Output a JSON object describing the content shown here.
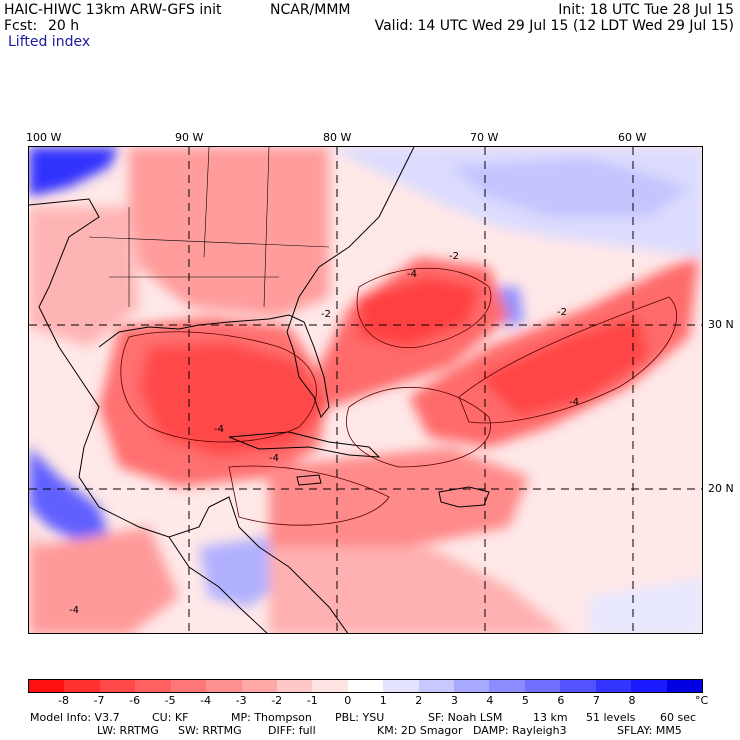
{
  "header": {
    "model": "HAIC-HIWC 13km ARW-GFS init",
    "org": "NCAR/MMM",
    "fcst_label": "Fcst:",
    "fcst_value": "20 h",
    "field": "Lifted index",
    "init": "Init: 18 UTC Tue 28 Jul 15",
    "valid": "Valid: 14 UTC Wed 29 Jul 15 (12 LDT Wed 29 Jul 15)"
  },
  "map": {
    "lon_labels": [
      "100 W",
      "90 W",
      "80 W",
      "70 W",
      "60 W"
    ],
    "lat_labels": [
      "30 N",
      "20 N"
    ],
    "contour_labels": [
      "-4",
      "-2",
      "-4",
      "-2",
      "-4",
      "-2",
      "-4",
      "-4"
    ]
  },
  "colorbar": {
    "colors": [
      "#ff1010",
      "#ff3030",
      "#ff4848",
      "#ff6060",
      "#ff7878",
      "#ff9090",
      "#ffa8a8",
      "#ffc8c8",
      "#ffe4e4",
      "#ffffff",
      "#e4e4ff",
      "#c8c8ff",
      "#a8a8ff",
      "#8c8cff",
      "#7070ff",
      "#5252ff",
      "#3434ff",
      "#1a1aff",
      "#0000e0"
    ],
    "ticks": [
      "-8",
      "-7",
      "-6",
      "-5",
      "-4",
      "-3",
      "-2",
      "-1",
      "0",
      "1",
      "2",
      "3",
      "4",
      "5",
      "6",
      "7",
      "8"
    ],
    "unit": "°C"
  },
  "footer": {
    "line1": [
      "Model Info: V3.7",
      "CU: KF",
      "MP: Thompson",
      "PBL: YSU",
      "SF: Noah LSM",
      "13 km",
      "51 levels",
      "60 sec"
    ],
    "line2": [
      "LW: RRTMG",
      "SW: RRTMG",
      "DIFF: full",
      "KM: 2D Smagor",
      "DAMP: Rayleigh3",
      "SFLAY: MM5"
    ]
  }
}
